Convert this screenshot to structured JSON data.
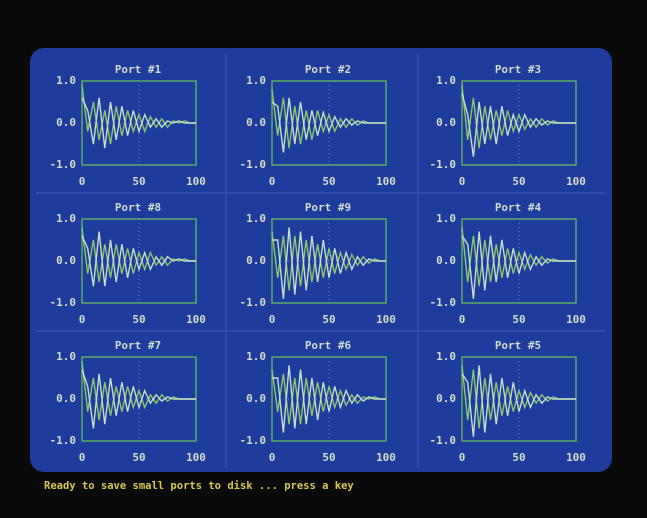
{
  "chart_data": [
    {
      "type": "line",
      "title": "Port #1",
      "x": [
        0,
        5,
        10,
        15,
        20,
        25,
        30,
        35,
        40,
        45,
        50,
        55,
        60,
        65,
        70,
        75,
        80,
        85,
        90,
        95,
        100
      ],
      "series": [
        {
          "color": "#86c86a",
          "values": [
            0.9,
            -0.2,
            0.5,
            -0.4,
            0.3,
            -0.5,
            0.4,
            -0.3,
            0.3,
            -0.2,
            0.2,
            -0.2,
            0.15,
            -0.1,
            0.1,
            -0.1,
            0.05,
            0,
            0.05,
            0,
            0
          ]
        },
        {
          "color": "#c8dcc8",
          "values": [
            0.6,
            0.3,
            -0.5,
            0.6,
            -0.6,
            0.5,
            -0.4,
            0.4,
            -0.3,
            0.3,
            -0.2,
            0.2,
            -0.1,
            0.1,
            -0.1,
            0.05,
            0,
            0.05,
            0,
            0,
            0
          ]
        }
      ],
      "xlim": [
        0,
        100
      ],
      "ylim": [
        -1,
        1
      ],
      "xticks": [
        0,
        50,
        100
      ],
      "yticks": [
        {
          "value": 1,
          "label": "1.0"
        },
        {
          "value": 0,
          "label": "0.0"
        },
        {
          "value": -1,
          "label": "-1.0"
        }
      ]
    },
    {
      "type": "line",
      "title": "Port #2",
      "x": [
        0,
        5,
        10,
        15,
        20,
        25,
        30,
        35,
        40,
        45,
        50,
        55,
        60,
        65,
        70,
        75,
        80,
        85,
        90,
        95,
        100
      ],
      "series": [
        {
          "color": "#86c86a",
          "values": [
            0.8,
            -0.3,
            0.6,
            -0.6,
            0.4,
            -0.5,
            0.3,
            -0.4,
            0.3,
            -0.2,
            0.2,
            -0.2,
            0.1,
            -0.1,
            0.1,
            -0.05,
            0.05,
            0,
            0,
            0,
            0
          ]
        },
        {
          "color": "#c8dcc8",
          "values": [
            0.5,
            0.4,
            -0.7,
            0.6,
            -0.5,
            0.5,
            -0.4,
            0.3,
            -0.3,
            0.25,
            -0.2,
            0.15,
            -0.1,
            0.1,
            -0.05,
            0.05,
            0,
            0,
            0,
            0,
            0
          ]
        }
      ],
      "xlim": [
        0,
        100
      ],
      "ylim": [
        -1,
        1
      ],
      "xticks": [
        0,
        50,
        100
      ],
      "yticks": [
        {
          "value": 1,
          "label": "1.0"
        },
        {
          "value": 0,
          "label": "0.0"
        },
        {
          "value": -1,
          "label": "-1.0"
        }
      ]
    },
    {
      "type": "line",
      "title": "Port #3",
      "x": [
        0,
        5,
        10,
        15,
        20,
        25,
        30,
        35,
        40,
        45,
        50,
        55,
        60,
        65,
        70,
        75,
        80,
        85,
        90,
        95,
        100
      ],
      "series": [
        {
          "color": "#86c86a",
          "values": [
            0.9,
            -0.4,
            0.6,
            -0.6,
            0.4,
            -0.4,
            0.3,
            -0.3,
            0.3,
            -0.2,
            0.2,
            -0.15,
            0.1,
            -0.1,
            0.1,
            -0.05,
            0.05,
            0,
            0,
            0,
            0
          ]
        },
        {
          "color": "#c8dcc8",
          "values": [
            0.7,
            0.2,
            -0.8,
            0.5,
            -0.5,
            0.4,
            -0.5,
            0.4,
            -0.3,
            0.2,
            -0.2,
            0.2,
            -0.1,
            0.1,
            -0.05,
            0.05,
            0,
            0,
            0,
            0,
            0
          ]
        }
      ],
      "xlim": [
        0,
        100
      ],
      "ylim": [
        -1,
        1
      ],
      "xticks": [
        0,
        50,
        100
      ],
      "yticks": [
        {
          "value": 1,
          "label": "1.0"
        },
        {
          "value": 0,
          "label": "0.0"
        },
        {
          "value": -1,
          "label": "-1.0"
        }
      ]
    },
    {
      "type": "line",
      "title": "Port #8",
      "x": [
        0,
        5,
        10,
        15,
        20,
        25,
        30,
        35,
        40,
        45,
        50,
        55,
        60,
        65,
        70,
        75,
        80,
        85,
        90,
        95,
        100
      ],
      "series": [
        {
          "color": "#86c86a",
          "values": [
            0.8,
            -0.3,
            0.5,
            -0.5,
            0.4,
            -0.4,
            0.4,
            -0.3,
            0.3,
            -0.3,
            0.2,
            -0.2,
            0.2,
            -0.1,
            0.1,
            -0.1,
            0.05,
            0,
            0.05,
            0,
            0
          ]
        },
        {
          "color": "#c8dcc8",
          "values": [
            0.6,
            0.3,
            -0.6,
            0.7,
            -0.6,
            0.5,
            -0.5,
            0.4,
            -0.4,
            0.3,
            -0.2,
            0.2,
            -0.2,
            0.1,
            -0.1,
            0.1,
            0,
            0.05,
            0,
            0,
            0
          ]
        }
      ],
      "xlim": [
        0,
        100
      ],
      "ylim": [
        -1,
        1
      ],
      "xticks": [
        0,
        50,
        100
      ],
      "yticks": [
        {
          "value": 1,
          "label": "1.0"
        },
        {
          "value": 0,
          "label": "0.0"
        },
        {
          "value": -1,
          "label": "-1.0"
        }
      ]
    },
    {
      "type": "line",
      "title": "Port #9",
      "x": [
        0,
        5,
        10,
        15,
        20,
        25,
        30,
        35,
        40,
        45,
        50,
        55,
        60,
        65,
        70,
        75,
        80,
        85,
        90,
        95,
        100
      ],
      "series": [
        {
          "color": "#86c86a",
          "values": [
            0.7,
            -0.4,
            0.6,
            -0.7,
            0.6,
            -0.6,
            0.5,
            -0.5,
            0.4,
            -0.4,
            0.3,
            -0.3,
            0.2,
            -0.2,
            0.15,
            -0.1,
            0.1,
            -0.05,
            0.05,
            0,
            0
          ]
        },
        {
          "color": "#c8dcc8",
          "values": [
            0.5,
            0.5,
            -0.9,
            0.8,
            -0.8,
            0.7,
            -0.7,
            0.6,
            -0.5,
            0.5,
            -0.4,
            0.3,
            -0.3,
            0.2,
            -0.2,
            0.1,
            -0.1,
            0.05,
            0,
            0,
            0
          ]
        }
      ],
      "xlim": [
        0,
        100
      ],
      "ylim": [
        -1,
        1
      ],
      "xticks": [
        0,
        50,
        100
      ],
      "yticks": [
        {
          "value": 1,
          "label": "1.0"
        },
        {
          "value": 0,
          "label": "0.0"
        },
        {
          "value": -1,
          "label": "-1.0"
        }
      ]
    },
    {
      "type": "line",
      "title": "Port #4",
      "x": [
        0,
        5,
        10,
        15,
        20,
        25,
        30,
        35,
        40,
        45,
        50,
        55,
        60,
        65,
        70,
        75,
        80,
        85,
        90,
        95,
        100
      ],
      "series": [
        {
          "color": "#86c86a",
          "values": [
            0.8,
            -0.5,
            0.6,
            -0.6,
            0.5,
            -0.5,
            0.4,
            -0.4,
            0.3,
            -0.3,
            0.2,
            -0.2,
            0.15,
            -0.1,
            0.1,
            -0.05,
            0.05,
            0,
            0,
            0,
            0
          ]
        },
        {
          "color": "#c8dcc8",
          "values": [
            0.6,
            0.4,
            -0.9,
            0.7,
            -0.7,
            0.6,
            -0.5,
            0.5,
            -0.4,
            0.3,
            -0.3,
            0.2,
            -0.2,
            0.1,
            -0.1,
            0.05,
            0,
            0,
            0,
            0,
            0
          ]
        }
      ],
      "xlim": [
        0,
        100
      ],
      "ylim": [
        -1,
        1
      ],
      "xticks": [
        0,
        50,
        100
      ],
      "yticks": [
        {
          "value": 1,
          "label": "1.0"
        },
        {
          "value": 0,
          "label": "0.0"
        },
        {
          "value": -1,
          "label": "-1.0"
        }
      ]
    },
    {
      "type": "line",
      "title": "Port #7",
      "x": [
        0,
        5,
        10,
        15,
        20,
        25,
        30,
        35,
        40,
        45,
        50,
        55,
        60,
        65,
        70,
        75,
        80,
        85,
        90,
        95,
        100
      ],
      "series": [
        {
          "color": "#86c86a",
          "values": [
            0.9,
            -0.3,
            0.5,
            -0.5,
            0.4,
            -0.4,
            0.3,
            -0.3,
            0.3,
            -0.2,
            0.2,
            -0.2,
            0.1,
            -0.1,
            0.1,
            -0.05,
            0.05,
            0,
            0,
            0,
            0
          ]
        },
        {
          "color": "#c8dcc8",
          "values": [
            0.7,
            0.3,
            -0.7,
            0.6,
            -0.6,
            0.5,
            -0.4,
            0.4,
            -0.3,
            0.3,
            -0.2,
            0.2,
            -0.1,
            0.1,
            -0.05,
            0.05,
            0,
            0,
            0,
            0,
            0
          ]
        }
      ],
      "xlim": [
        0,
        100
      ],
      "ylim": [
        -1,
        1
      ],
      "xticks": [
        0,
        50,
        100
      ],
      "yticks": [
        {
          "value": 1,
          "label": "1.0"
        },
        {
          "value": 0,
          "label": "0.0"
        },
        {
          "value": -1,
          "label": "-1.0"
        }
      ]
    },
    {
      "type": "line",
      "title": "Port #6",
      "x": [
        0,
        5,
        10,
        15,
        20,
        25,
        30,
        35,
        40,
        45,
        50,
        55,
        60,
        65,
        70,
        75,
        80,
        85,
        90,
        95,
        100
      ],
      "series": [
        {
          "color": "#86c86a",
          "values": [
            0.7,
            -0.3,
            0.6,
            -0.6,
            0.5,
            -0.6,
            0.5,
            -0.4,
            0.4,
            -0.3,
            0.3,
            -0.2,
            0.2,
            -0.15,
            0.1,
            -0.1,
            0.05,
            0,
            0.05,
            0,
            0
          ]
        },
        {
          "color": "#c8dcc8",
          "values": [
            0.5,
            0.5,
            -0.8,
            0.8,
            -0.7,
            0.7,
            -0.6,
            0.5,
            -0.5,
            0.4,
            -0.3,
            0.3,
            -0.2,
            0.2,
            -0.1,
            0.1,
            -0.05,
            0.05,
            0,
            0,
            0
          ]
        }
      ],
      "xlim": [
        0,
        100
      ],
      "ylim": [
        -1,
        1
      ],
      "xticks": [
        0,
        50,
        100
      ],
      "yticks": [
        {
          "value": 1,
          "label": "1.0"
        },
        {
          "value": 0,
          "label": "0.0"
        },
        {
          "value": -1,
          "label": "-1.0"
        }
      ]
    },
    {
      "type": "line",
      "title": "Port #5",
      "x": [
        0,
        5,
        10,
        15,
        20,
        25,
        30,
        35,
        40,
        45,
        50,
        55,
        60,
        65,
        70,
        75,
        80,
        85,
        90,
        95,
        100
      ],
      "series": [
        {
          "color": "#86c86a",
          "values": [
            0.8,
            -0.5,
            0.7,
            -0.7,
            0.5,
            -0.5,
            0.4,
            -0.4,
            0.3,
            -0.3,
            0.2,
            -0.2,
            0.15,
            -0.1,
            0.1,
            -0.05,
            0.05,
            0,
            0,
            0,
            0
          ]
        },
        {
          "color": "#c8dcc8",
          "values": [
            0.6,
            0.4,
            -0.9,
            0.8,
            -0.8,
            0.6,
            -0.6,
            0.5,
            -0.4,
            0.4,
            -0.3,
            0.2,
            -0.2,
            0.1,
            -0.1,
            0.05,
            0,
            0,
            0,
            0,
            0
          ]
        }
      ],
      "xlim": [
        0,
        100
      ],
      "ylim": [
        -1,
        1
      ],
      "xticks": [
        0,
        50,
        100
      ],
      "yticks": [
        {
          "value": 1,
          "label": "1.0"
        },
        {
          "value": 0,
          "label": "0.0"
        },
        {
          "value": -1,
          "label": "-1.0"
        }
      ]
    }
  ],
  "status": "Ready to save small ports to disk ... press a key"
}
